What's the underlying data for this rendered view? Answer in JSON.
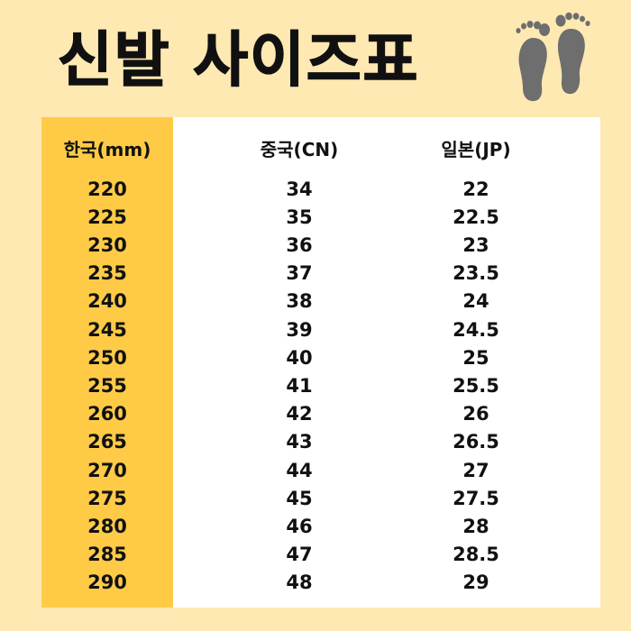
{
  "title": "신발 사이즈표",
  "icons": {
    "title_icon": "feet-icon"
  },
  "colors": {
    "background": "#FFE9B2",
    "highlight_column": "#FFCB47",
    "table_background": "#FFFFFF",
    "text": "#111111",
    "icon": "#6E6E6E"
  },
  "table": {
    "headers": [
      "한국(mm)",
      "중국(CN)",
      "일본(JP)"
    ],
    "rows": [
      [
        "220",
        "34",
        "22"
      ],
      [
        "225",
        "35",
        "22.5"
      ],
      [
        "230",
        "36",
        "23"
      ],
      [
        "235",
        "37",
        "23.5"
      ],
      [
        "240",
        "38",
        "24"
      ],
      [
        "245",
        "39",
        "24.5"
      ],
      [
        "250",
        "40",
        "25"
      ],
      [
        "255",
        "41",
        "25.5"
      ],
      [
        "260",
        "42",
        "26"
      ],
      [
        "265",
        "43",
        "26.5"
      ],
      [
        "270",
        "44",
        "27"
      ],
      [
        "275",
        "45",
        "27.5"
      ],
      [
        "280",
        "46",
        "28"
      ],
      [
        "285",
        "47",
        "28.5"
      ],
      [
        "290",
        "48",
        "29"
      ]
    ]
  }
}
